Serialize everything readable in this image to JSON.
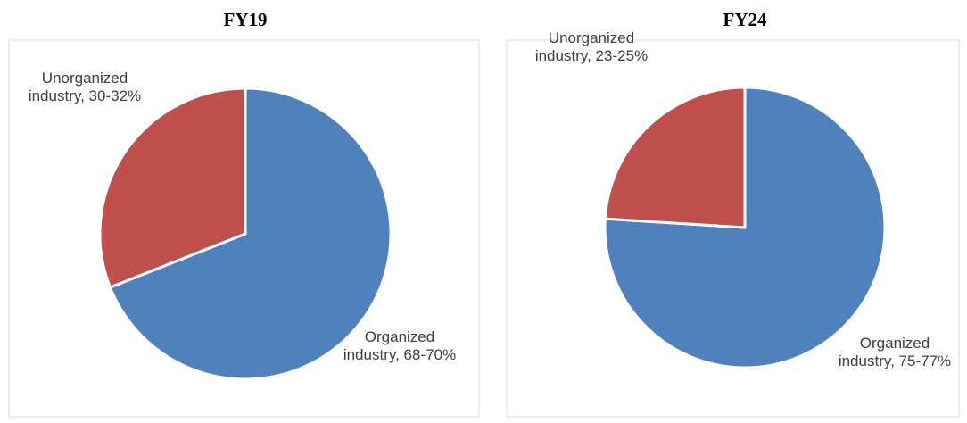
{
  "chart_data": [
    {
      "type": "pie",
      "title": "FY19",
      "categories": [
        "Organized industry",
        "Unorganized industry"
      ],
      "values": [
        69,
        31
      ],
      "value_labels": [
        "68-70%",
        "30-32%"
      ],
      "colors": [
        "#4f81bd",
        "#c0504d"
      ]
    },
    {
      "type": "pie",
      "title": "FY24",
      "categories": [
        "Organized industry",
        "Unorganized industry"
      ],
      "values": [
        76,
        24
      ],
      "value_labels": [
        "75-77%",
        "23-25%"
      ],
      "colors": [
        "#4f81bd",
        "#c0504d"
      ]
    }
  ]
}
